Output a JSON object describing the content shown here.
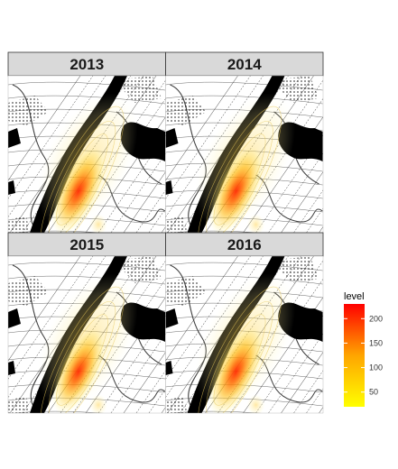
{
  "chart_data": {
    "type": "heatmap",
    "subtype": "faceted density map",
    "facets": [
      {
        "label": "2013",
        "peak_level": 220
      },
      {
        "label": "2014",
        "peak_level": 220
      },
      {
        "label": "2015",
        "peak_level": 215
      },
      {
        "label": "2016",
        "peak_level": 225
      }
    ],
    "layout": {
      "rows": 2,
      "cols": 2
    },
    "legend": {
      "title": "level",
      "ticks": [
        50,
        100,
        150,
        200
      ],
      "range": [
        20,
        230
      ],
      "colors": {
        "low": "#ffff00",
        "high": "#ff0000"
      },
      "placement": "right"
    },
    "basemap": "street map"
  }
}
